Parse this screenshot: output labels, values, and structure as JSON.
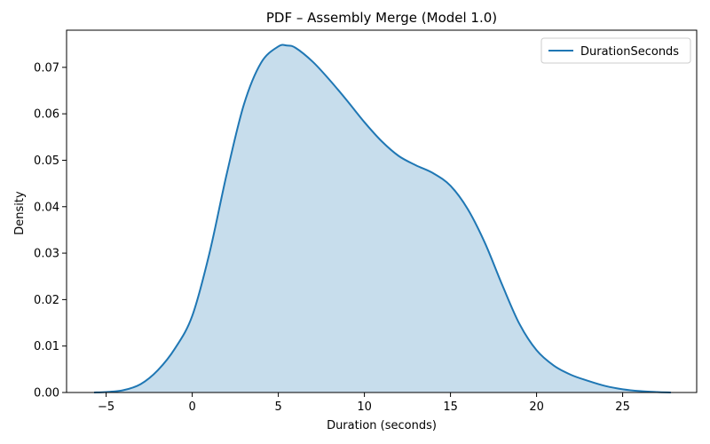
{
  "chart_data": {
    "type": "area",
    "title": "PDF – Assembly Merge (Model 1.0)",
    "xlabel": "Duration (seconds)",
    "ylabel": "Density",
    "xlim": [
      -7.3,
      29.3
    ],
    "ylim": [
      0,
      0.078
    ],
    "xticks": [
      -5,
      0,
      5,
      10,
      15,
      20,
      25
    ],
    "xtick_labels": [
      "−5",
      "0",
      "5",
      "10",
      "15",
      "20",
      "25"
    ],
    "yticks": [
      0,
      0.01,
      0.02,
      0.03,
      0.04,
      0.05,
      0.06,
      0.07
    ],
    "ytick_labels": [
      "0.00",
      "0.01",
      "0.02",
      "0.03",
      "0.04",
      "0.05",
      "0.06",
      "0.07"
    ],
    "grid": false,
    "legend_position": "top-right",
    "series": [
      {
        "name": "DurationSeconds",
        "color": "#1f77b4",
        "fill_color": "#1f77b4",
        "fill_opacity": 0.25,
        "x": [
          -5.7,
          -5,
          -4,
          -3,
          -2,
          -1,
          0,
          1,
          2,
          3,
          4,
          5,
          5.5,
          6,
          7,
          8,
          9,
          10,
          11,
          12,
          13,
          14,
          15,
          16,
          17,
          18,
          19,
          20,
          21,
          22,
          23,
          24,
          25,
          26,
          27,
          27.8
        ],
        "y": [
          0.0,
          0.0001,
          0.0005,
          0.0018,
          0.0048,
          0.0095,
          0.0165,
          0.03,
          0.047,
          0.062,
          0.071,
          0.0745,
          0.0747,
          0.0742,
          0.0712,
          0.0672,
          0.0628,
          0.0582,
          0.0541,
          0.0509,
          0.0489,
          0.0472,
          0.0445,
          0.0395,
          0.0322,
          0.0232,
          0.0148,
          0.0091,
          0.0058,
          0.0038,
          0.0025,
          0.0014,
          0.0007,
          0.0003,
          0.0001,
          0.0
        ]
      }
    ]
  }
}
